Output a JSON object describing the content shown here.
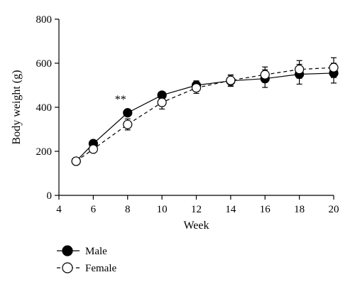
{
  "chart_data": {
    "type": "line",
    "xlabel": "Week",
    "ylabel": "Body weight (g)",
    "xlim": [
      4,
      20
    ],
    "ylim": [
      0,
      800
    ],
    "x_ticks": [
      4,
      6,
      8,
      10,
      12,
      14,
      16,
      18,
      20
    ],
    "y_ticks": [
      0,
      200,
      400,
      600,
      800
    ],
    "grid": false,
    "legend_position": "bottom-left",
    "series": [
      {
        "name": "Male",
        "marker": "filled-circle",
        "line_style": "solid",
        "color": "#000000",
        "x": [
          5,
          6,
          8,
          10,
          12,
          14,
          16,
          18,
          20
        ],
        "y": [
          155,
          235,
          375,
          455,
          500,
          520,
          530,
          550,
          555
        ],
        "error": [
          0,
          12,
          12,
          15,
          20,
          25,
          40,
          45,
          45
        ]
      },
      {
        "name": "Female",
        "marker": "open-circle",
        "line_style": "dashed",
        "color": "#000000",
        "x": [
          5,
          6,
          8,
          10,
          12,
          14,
          16,
          18,
          20
        ],
        "y": [
          155,
          210,
          322,
          422,
          488,
          522,
          548,
          572,
          580
        ],
        "error": [
          0,
          12,
          25,
          30,
          25,
          25,
          35,
          40,
          45
        ]
      }
    ],
    "annotations": [
      {
        "text": "**",
        "x": 8,
        "y": 375
      }
    ]
  }
}
